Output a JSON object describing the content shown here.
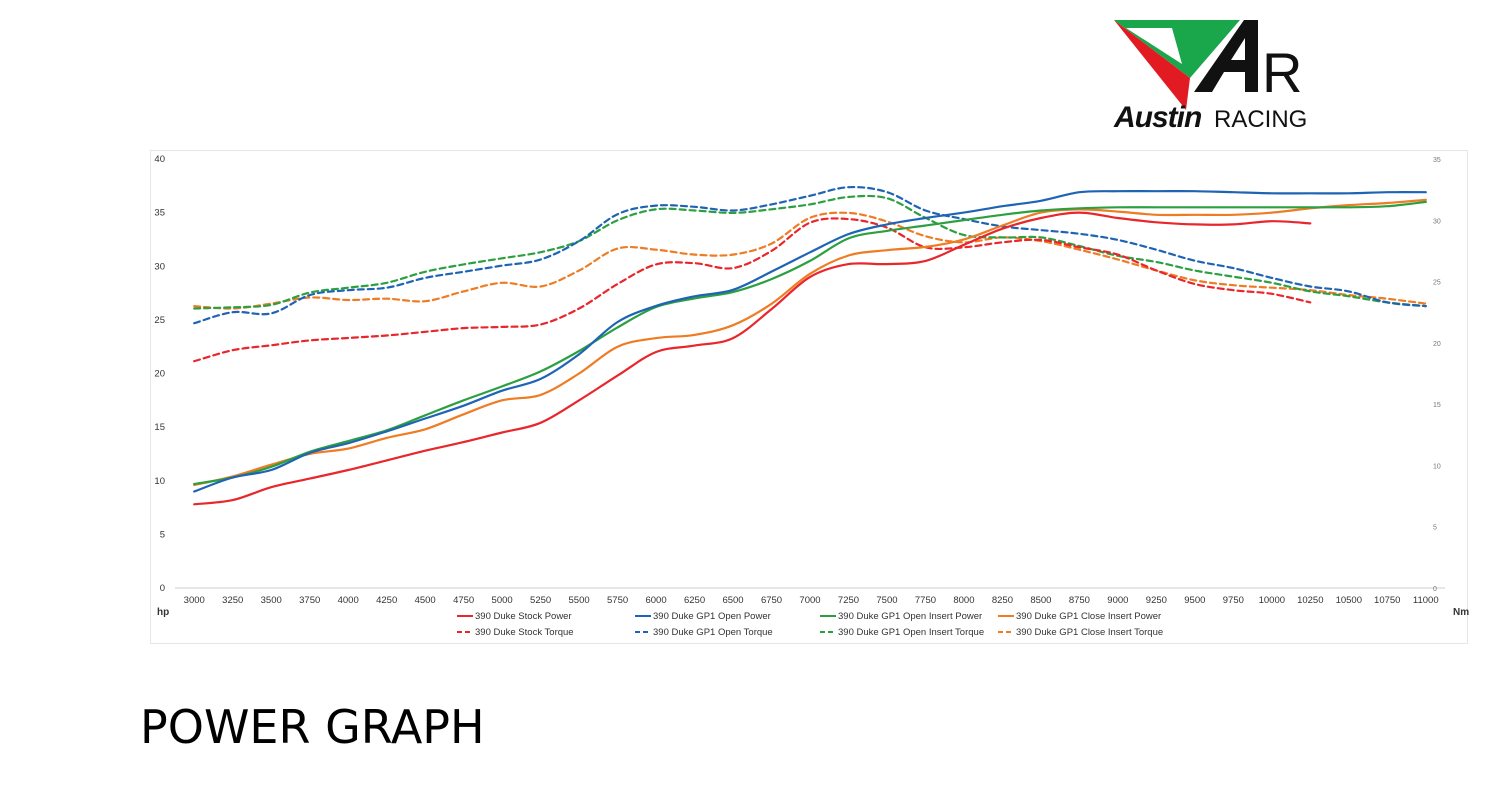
{
  "logo": {
    "mark_letters": "AR",
    "word_bold": "Austin",
    "word_light": "RACING",
    "colors": {
      "green": "#1aa64a",
      "red": "#e21b23",
      "black": "#111111"
    }
  },
  "page_heading": "POWER GRAPH",
  "chart_data": {
    "type": "line",
    "title": "",
    "xlabel": "",
    "ylabel": "hp",
    "y2label": "Nm",
    "x": [
      3000,
      3250,
      3500,
      3750,
      4000,
      4250,
      4500,
      4750,
      5000,
      5250,
      5500,
      5750,
      6000,
      6250,
      6500,
      6750,
      7000,
      7250,
      7500,
      7750,
      8000,
      8250,
      8500,
      8750,
      9000,
      9250,
      9500,
      9750,
      10000,
      10250,
      10500,
      10750,
      11000
    ],
    "xlim": [
      2875,
      11125
    ],
    "ylim": [
      0,
      40
    ],
    "y2lim": [
      0,
      35
    ],
    "yticks": [
      0,
      5,
      10,
      15,
      20,
      25,
      30,
      35,
      40
    ],
    "y2ticks": [
      0,
      5,
      10,
      15,
      20,
      25,
      30,
      35
    ],
    "grid": false,
    "legend_position": "bottom",
    "series": [
      {
        "name": "390 Duke Stock Power",
        "axis": "left",
        "style": "solid",
        "color": "#e8262b",
        "values": [
          7.8,
          8.2,
          9.4,
          10.2,
          11.0,
          11.9,
          12.8,
          13.6,
          14.5,
          15.4,
          17.5,
          19.8,
          22.0,
          22.6,
          23.3,
          26.0,
          29.0,
          30.2,
          30.2,
          30.5,
          32.0,
          33.5,
          34.5,
          35.0,
          34.5,
          34.1,
          33.9,
          33.9,
          34.2,
          34.0,
          null,
          null,
          null
        ]
      },
      {
        "name": "390 Duke GP1 Open Power",
        "axis": "left",
        "style": "solid",
        "color": "#1f64b4",
        "values": [
          9.0,
          10.3,
          11.0,
          12.6,
          13.5,
          14.6,
          15.8,
          17.0,
          18.4,
          19.5,
          21.8,
          24.8,
          26.3,
          27.2,
          27.8,
          29.5,
          31.3,
          33.0,
          33.9,
          34.5,
          35.0,
          35.6,
          36.1,
          36.9,
          37.0,
          37.0,
          37.0,
          36.9,
          36.8,
          36.8,
          36.8,
          36.9,
          36.9
        ]
      },
      {
        "name": "390 Duke GP1 Open Insert Power",
        "axis": "left",
        "style": "solid",
        "color": "#2ca040",
        "values": [
          9.7,
          10.3,
          11.3,
          12.7,
          13.7,
          14.7,
          16.1,
          17.5,
          18.8,
          20.2,
          22.1,
          24.3,
          26.2,
          27.0,
          27.6,
          28.8,
          30.5,
          32.6,
          33.3,
          33.8,
          34.3,
          34.8,
          35.2,
          35.4,
          35.5,
          35.5,
          35.5,
          35.5,
          35.5,
          35.5,
          35.5,
          35.6,
          36.0
        ]
      },
      {
        "name": "390 Duke GP1 Close Insert Power",
        "axis": "left",
        "style": "solid",
        "color": "#ef7b22",
        "values": [
          9.6,
          10.4,
          11.5,
          12.5,
          13.0,
          14.0,
          14.8,
          16.2,
          17.5,
          18.0,
          20.0,
          22.5,
          23.3,
          23.6,
          24.5,
          26.5,
          29.3,
          31.0,
          31.5,
          31.8,
          32.5,
          33.8,
          35.0,
          35.3,
          35.1,
          34.8,
          34.8,
          34.8,
          35.0,
          35.4,
          35.7,
          35.9,
          36.2
        ]
      },
      {
        "name": "390 Duke Stock Torque",
        "axis": "right",
        "style": "dashed",
        "color": "#e8262b",
        "values": [
          18.5,
          19.4,
          19.8,
          20.2,
          20.4,
          20.6,
          20.9,
          21.2,
          21.3,
          21.5,
          22.8,
          24.8,
          26.4,
          26.5,
          26.1,
          27.5,
          29.8,
          30.1,
          29.4,
          27.8,
          27.8,
          28.2,
          28.4,
          27.8,
          27.2,
          25.9,
          24.8,
          24.3,
          24.0,
          23.3,
          null,
          null,
          null
        ]
      },
      {
        "name": "390 Duke GP1 Open Torque",
        "axis": "right",
        "style": "dashed",
        "color": "#1f64b4",
        "values": [
          21.6,
          22.5,
          22.4,
          23.9,
          24.3,
          24.5,
          25.3,
          25.8,
          26.3,
          26.8,
          28.3,
          30.5,
          31.2,
          31.1,
          30.8,
          31.3,
          32.0,
          32.7,
          32.3,
          30.8,
          30.1,
          29.5,
          29.2,
          28.9,
          28.4,
          27.6,
          26.7,
          26.1,
          25.3,
          24.6,
          24.2,
          23.3,
          23.0
        ]
      },
      {
        "name": "390 Duke GP1 Open Insert Torque",
        "axis": "right",
        "style": "dashed",
        "color": "#2ca040",
        "values": [
          22.8,
          22.9,
          23.1,
          24.1,
          24.5,
          24.9,
          25.8,
          26.4,
          26.9,
          27.4,
          28.3,
          30.0,
          30.9,
          30.8,
          30.6,
          30.9,
          31.3,
          31.9,
          31.8,
          30.2,
          28.8,
          28.6,
          28.6,
          27.9,
          27.1,
          26.6,
          25.9,
          25.4,
          24.9,
          24.2,
          23.8,
          23.3,
          23.0
        ]
      },
      {
        "name": "390 Duke GP1 Close Insert Torque",
        "axis": "right",
        "style": "dashed",
        "color": "#ef7b22",
        "values": [
          23.0,
          22.8,
          23.2,
          23.7,
          23.5,
          23.6,
          23.4,
          24.2,
          24.9,
          24.6,
          25.9,
          27.7,
          27.6,
          27.2,
          27.2,
          28.1,
          30.2,
          30.6,
          29.9,
          28.7,
          28.2,
          28.6,
          28.3,
          27.6,
          26.8,
          25.9,
          25.1,
          24.7,
          24.5,
          24.3,
          23.9,
          23.6,
          23.2
        ]
      }
    ]
  }
}
